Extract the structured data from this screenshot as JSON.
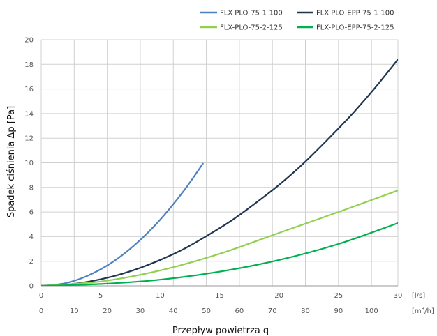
{
  "chart_data": {
    "type": "line",
    "xlabel": "Przepływ powietrza q",
    "ylabel": "Spadek ciśnienia Δp [Pa]",
    "x_unit_primary": "[l/s]",
    "x_unit_secondary_base": "[m",
    "x_unit_secondary_sup": "3",
    "x_unit_secondary_tail": "/h]",
    "xlim": [
      0,
      30
    ],
    "ylim": [
      0,
      20
    ],
    "x_ticks": [
      "0",
      "5",
      "10",
      "15",
      "20",
      "25",
      "30"
    ],
    "x_ticks_secondary": [
      "0",
      "10",
      "20",
      "30",
      "40",
      "50",
      "60",
      "70",
      "80",
      "90",
      "100"
    ],
    "y_ticks": [
      "0",
      "2",
      "4",
      "6",
      "8",
      "10",
      "12",
      "14",
      "16",
      "18",
      "20"
    ],
    "grid": true,
    "legend_position": "top-right",
    "series": [
      {
        "name": "FLX-PLO-75-1-100",
        "color": "#4f81bd",
        "x": [
          0,
          2,
          4,
          6,
          8,
          10,
          12,
          13.6
        ],
        "y": [
          0,
          0.21,
          0.86,
          1.93,
          3.44,
          5.37,
          7.73,
          9.93
        ]
      },
      {
        "name": "FLX-PLO-EPP-75-1-100",
        "color": "#1f3550",
        "x": [
          0,
          2,
          4,
          6,
          8,
          10,
          12,
          14,
          16,
          18,
          20,
          22,
          24,
          26,
          28,
          30
        ],
        "y": [
          0,
          0.08,
          0.34,
          0.76,
          1.35,
          2.1,
          3.0,
          4.1,
          5.3,
          6.7,
          8.2,
          9.9,
          11.8,
          13.8,
          16.0,
          18.4
        ]
      },
      {
        "name": "FLX-PLO-75-2-125",
        "color": "#92d050",
        "x": [
          0,
          5,
          10,
          15,
          20,
          25,
          30
        ],
        "y": [
          0,
          0.35,
          1.25,
          2.6,
          4.3,
          6.0,
          7.75
        ]
      },
      {
        "name": "FLX-PLO-EPP-75-2-125",
        "color": "#00b050",
        "x": [
          0,
          5,
          10,
          15,
          20,
          25,
          30
        ],
        "y": [
          0,
          0.15,
          0.5,
          1.15,
          2.1,
          3.4,
          5.1
        ]
      }
    ]
  }
}
